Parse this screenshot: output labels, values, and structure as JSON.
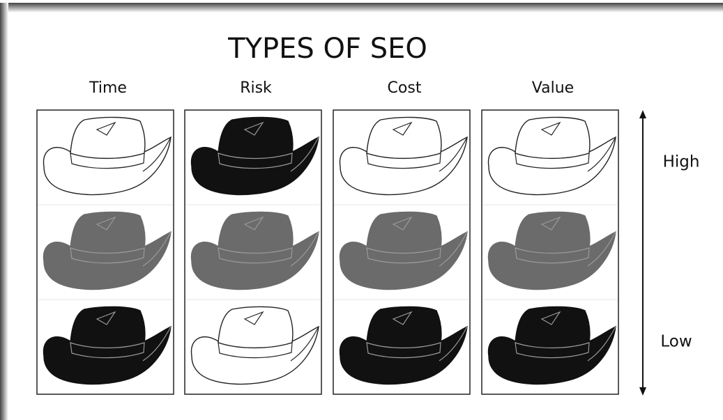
{
  "title": "TYPES OF SEO",
  "columns": [
    {
      "label": "Time",
      "hats": [
        "#ffffff",
        "#6b6b6b",
        "#111111"
      ]
    },
    {
      "label": "Risk",
      "hats": [
        "#111111",
        "#6b6b6b",
        "#ffffff"
      ]
    },
    {
      "label": "Cost",
      "hats": [
        "#ffffff",
        "#6b6b6b",
        "#111111"
      ]
    },
    {
      "label": "Value",
      "hats": [
        "#ffffff",
        "#6b6b6b",
        "#111111"
      ]
    }
  ],
  "scale": {
    "top": "High",
    "bottom": "Low"
  }
}
